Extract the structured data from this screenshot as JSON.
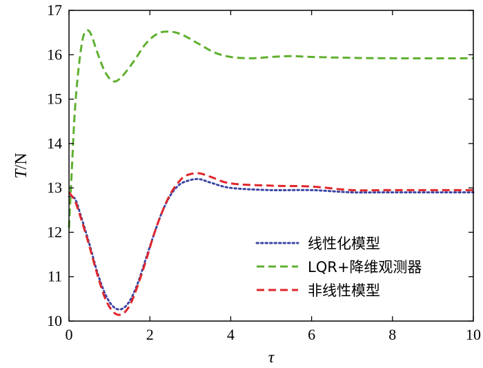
{
  "chart_data": {
    "type": "line",
    "xlabel": "τ",
    "ylabel_italic": "T",
    "ylabel_rest": "/N",
    "xlim": [
      0,
      10
    ],
    "ylim": [
      10,
      17
    ],
    "xticks": [
      "0",
      "2",
      "4",
      "6",
      "8",
      "10"
    ],
    "yticks": [
      "10",
      "11",
      "12",
      "13",
      "14",
      "15",
      "16",
      "17"
    ],
    "grid": false,
    "legend_position": "lower-right",
    "series": [
      {
        "name": "线性化模型",
        "color": "#3b45a3",
        "dash": "dotted",
        "points": [
          [
            0,
            12.8
          ],
          [
            0.15,
            12.75
          ],
          [
            0.3,
            12.35
          ],
          [
            0.5,
            11.75
          ],
          [
            0.7,
            11.1
          ],
          [
            0.9,
            10.6
          ],
          [
            1.1,
            10.32
          ],
          [
            1.3,
            10.27
          ],
          [
            1.5,
            10.45
          ],
          [
            1.7,
            10.85
          ],
          [
            1.9,
            11.4
          ],
          [
            2.1,
            11.95
          ],
          [
            2.3,
            12.45
          ],
          [
            2.5,
            12.82
          ],
          [
            2.7,
            13.05
          ],
          [
            2.9,
            13.15
          ],
          [
            3.2,
            13.2
          ],
          [
            3.5,
            13.12
          ],
          [
            4.0,
            13.0
          ],
          [
            5.0,
            12.95
          ],
          [
            6.0,
            12.95
          ],
          [
            7.0,
            12.9
          ],
          [
            8.0,
            12.9
          ],
          [
            10,
            12.9
          ]
        ]
      },
      {
        "name": "LQR+降维观测器",
        "color": "#5fb030",
        "dash": "dashed",
        "points": [
          [
            0,
            12.1
          ],
          [
            0.08,
            13.6
          ],
          [
            0.15,
            14.8
          ],
          [
            0.25,
            15.8
          ],
          [
            0.35,
            16.4
          ],
          [
            0.45,
            16.55
          ],
          [
            0.55,
            16.45
          ],
          [
            0.7,
            16.05
          ],
          [
            0.9,
            15.6
          ],
          [
            1.1,
            15.4
          ],
          [
            1.3,
            15.5
          ],
          [
            1.6,
            15.85
          ],
          [
            1.9,
            16.25
          ],
          [
            2.2,
            16.48
          ],
          [
            2.5,
            16.52
          ],
          [
            2.8,
            16.45
          ],
          [
            3.2,
            16.25
          ],
          [
            3.6,
            16.05
          ],
          [
            4.0,
            15.95
          ],
          [
            4.5,
            15.92
          ],
          [
            5.0,
            15.95
          ],
          [
            5.5,
            15.97
          ],
          [
            6.0,
            15.95
          ],
          [
            7.0,
            15.93
          ],
          [
            8.0,
            15.92
          ],
          [
            10,
            15.92
          ]
        ]
      },
      {
        "name": "非线性模型",
        "color": "#e0262a",
        "dash": "dashed",
        "points": [
          [
            0,
            12.9
          ],
          [
            0.15,
            12.7
          ],
          [
            0.3,
            12.3
          ],
          [
            0.5,
            11.7
          ],
          [
            0.7,
            11.05
          ],
          [
            0.9,
            10.5
          ],
          [
            1.1,
            10.2
          ],
          [
            1.3,
            10.15
          ],
          [
            1.5,
            10.35
          ],
          [
            1.7,
            10.8
          ],
          [
            1.9,
            11.35
          ],
          [
            2.1,
            11.95
          ],
          [
            2.3,
            12.45
          ],
          [
            2.5,
            12.85
          ],
          [
            2.7,
            13.12
          ],
          [
            2.9,
            13.28
          ],
          [
            3.2,
            13.33
          ],
          [
            3.5,
            13.25
          ],
          [
            4.0,
            13.1
          ],
          [
            5.0,
            13.05
          ],
          [
            6.0,
            13.03
          ],
          [
            7.0,
            12.95
          ],
          [
            8.0,
            12.95
          ],
          [
            10,
            12.95
          ]
        ]
      }
    ]
  }
}
